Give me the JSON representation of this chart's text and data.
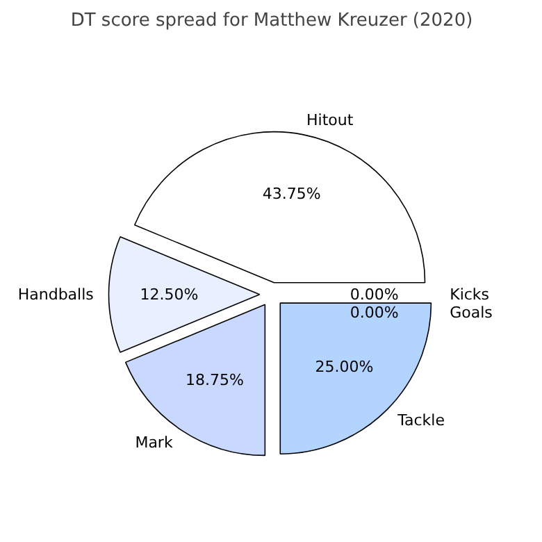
{
  "chart_data": {
    "type": "pie",
    "title": "DT score spread for Matthew Kreuzer (2020)",
    "categories": [
      "Hitout",
      "Handballs",
      "Mark",
      "Tackle",
      "Kicks",
      "Goals"
    ],
    "values": [
      43.75,
      12.5,
      18.75,
      25.0,
      0.0,
      0.0
    ],
    "value_labels": [
      "43.75%",
      "12.50%",
      "18.75%",
      "25.00%",
      "0.00%",
      "0.00%"
    ],
    "colors": [
      "#ffffff",
      "#e8f0ff",
      "#c8d8ff",
      "#b3d4ff",
      "#a8c8ff",
      "#9cc0ff"
    ]
  }
}
